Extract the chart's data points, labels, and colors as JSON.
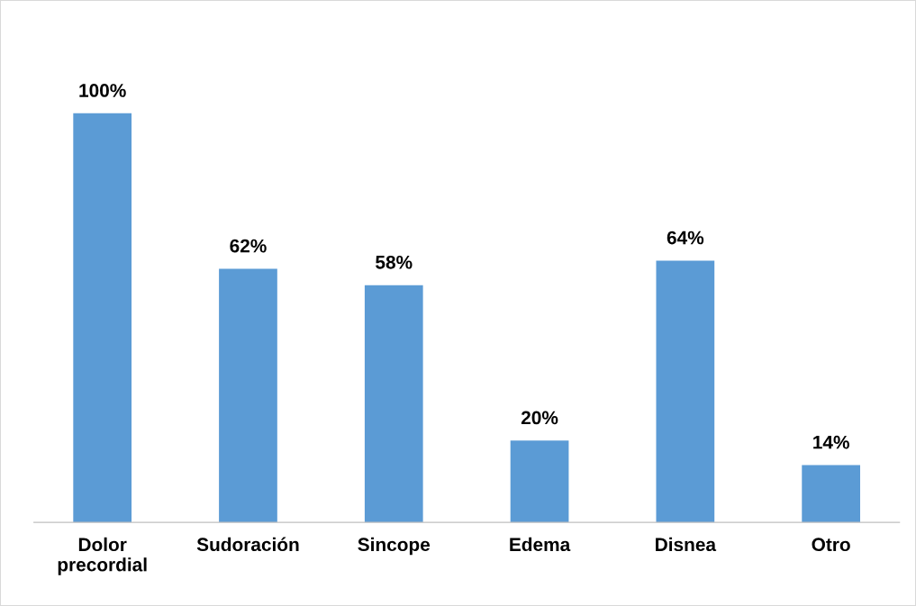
{
  "chart_data": {
    "type": "bar",
    "categories": [
      "Dolor\nprecordial",
      "Sudoración",
      "Sincope",
      "Edema",
      "Disnea",
      "Otro"
    ],
    "values": [
      100,
      62,
      58,
      20,
      64,
      14
    ],
    "value_labels": [
      "100%",
      "62%",
      "58%",
      "20%",
      "64%",
      "14%"
    ],
    "color": "#5b9bd5",
    "grid": false,
    "legend": false
  }
}
